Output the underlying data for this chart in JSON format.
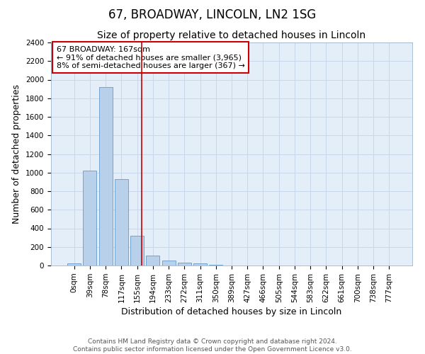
{
  "title": "67, BROADWAY, LINCOLN, LN2 1SG",
  "subtitle": "Size of property relative to detached houses in Lincoln",
  "xlabel": "Distribution of detached houses by size in Lincoln",
  "ylabel": "Number of detached properties",
  "categories": [
    "0sqm",
    "39sqm",
    "78sqm",
    "117sqm",
    "155sqm",
    "194sqm",
    "233sqm",
    "272sqm",
    "311sqm",
    "350sqm",
    "389sqm",
    "427sqm",
    "466sqm",
    "505sqm",
    "544sqm",
    "583sqm",
    "622sqm",
    "661sqm",
    "700sqm",
    "738sqm",
    "777sqm"
  ],
  "values": [
    20,
    1020,
    1920,
    930,
    320,
    105,
    50,
    30,
    20,
    5,
    2,
    0,
    0,
    0,
    0,
    0,
    0,
    0,
    0,
    0,
    0
  ],
  "bar_color": "#b8d0ea",
  "bar_edge_color": "#6699cc",
  "vline_x": 4.28,
  "vline_color": "#cc0000",
  "annotation_text": "67 BROADWAY: 167sqm\n← 91% of detached houses are smaller (3,965)\n8% of semi-detached houses are larger (367) →",
  "annotation_box_color": "#cc0000",
  "annotation_box_facecolor": "white",
  "ylim": [
    0,
    2400
  ],
  "yticks": [
    0,
    200,
    400,
    600,
    800,
    1000,
    1200,
    1400,
    1600,
    1800,
    2000,
    2200,
    2400
  ],
  "grid_color": "#c8d8ea",
  "bg_color": "#e4eef8",
  "footer_text": "Contains HM Land Registry data © Crown copyright and database right 2024.\nContains public sector information licensed under the Open Government Licence v3.0.",
  "title_fontsize": 12,
  "subtitle_fontsize": 10,
  "xlabel_fontsize": 9,
  "ylabel_fontsize": 9,
  "annotation_fontsize": 8,
  "tick_fontsize": 7.5
}
